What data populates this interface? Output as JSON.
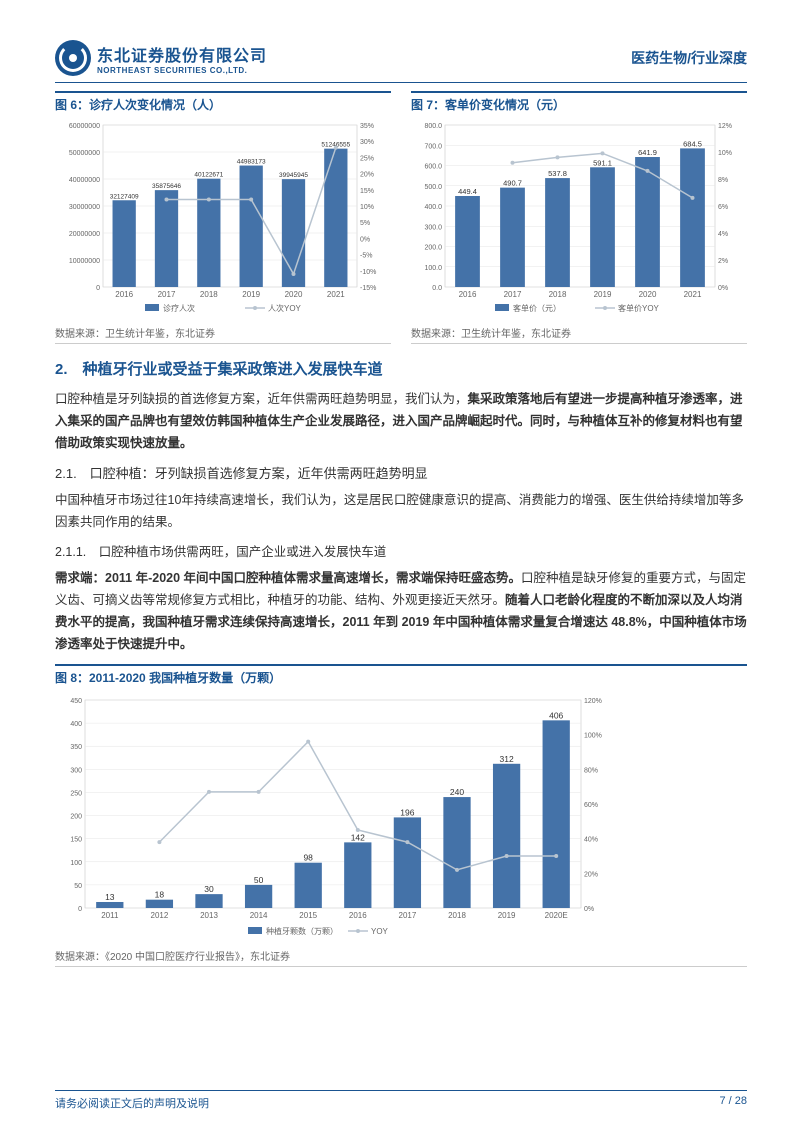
{
  "header": {
    "company_cn": "东北证券股份有限公司",
    "company_en": "NORTHEAST SECURITIES CO.,LTD.",
    "right": "医药生物/行业深度"
  },
  "chart6": {
    "title": "图 6：诊疗人次变化情况（人）",
    "type": "bar+line",
    "years": [
      "2016",
      "2017",
      "2018",
      "2019",
      "2020",
      "2021"
    ],
    "bar_values": [
      32127409,
      35875646,
      40122671,
      44983173,
      39945945,
      51246555
    ],
    "bar_labels": [
      "32127409",
      "35875646",
      "40122671",
      "44983173",
      "39945945",
      "51246555"
    ],
    "line_values_pct": [
      null,
      12,
      12,
      12,
      -11,
      28
    ],
    "y1_max": 60000000,
    "y1_step": 10000000,
    "y1_ticks": [
      "0",
      "10000000",
      "20000000",
      "30000000",
      "40000000",
      "50000000",
      "60000000"
    ],
    "y2_min": -15,
    "y2_max": 35,
    "y2_step": 5,
    "y2_ticks": [
      "-15%",
      "-10%",
      "-5%",
      "0%",
      "5%",
      "10%",
      "15%",
      "20%",
      "25%",
      "30%",
      "35%"
    ],
    "bar_color": "#4472a8",
    "line_color": "#b8c4d0",
    "legend_bar": "诊疗人次",
    "legend_line": "人次YOY",
    "source": "数据来源：卫生统计年鉴，东北证券"
  },
  "chart7": {
    "title": "图 7：客单价变化情况（元）",
    "type": "bar+line",
    "years": [
      "2016",
      "2017",
      "2018",
      "2019",
      "2020",
      "2021"
    ],
    "bar_values": [
      449.4,
      490.7,
      537.8,
      591.1,
      641.9,
      684.5
    ],
    "bar_labels": [
      "449.4",
      "490.7",
      "537.8",
      "591.1",
      "641.9",
      "684.5"
    ],
    "line_values_pct": [
      null,
      9.2,
      9.6,
      9.9,
      8.6,
      6.6
    ],
    "y1_max": 800,
    "y1_step": 100,
    "y1_ticks": [
      "0.0",
      "100.0",
      "200.0",
      "300.0",
      "400.0",
      "500.0",
      "600.0",
      "700.0",
      "800.0"
    ],
    "y2_min": 0,
    "y2_max": 12,
    "y2_step": 2,
    "y2_ticks": [
      "0%",
      "2%",
      "4%",
      "6%",
      "8%",
      "10%",
      "12%"
    ],
    "bar_color": "#4472a8",
    "line_color": "#b8c4d0",
    "legend_bar": "客单价（元）",
    "legend_line": "客单价YOY",
    "source": "数据来源：卫生统计年鉴，东北证券"
  },
  "section2_title": "2.　种植牙行业或受益于集采政策进入发展快车道",
  "p1_pre": "口腔种植是牙列缺损的首选修复方案，近年供需两旺趋势明显，我们认为，",
  "p1_bold": "集采政策落地后有望进一步提高种植牙渗透率，进入集采的国产品牌也有望效仿韩国种植体生产企业发展路径，进入国产品牌崛起时代。同时，与种植体互补的修复材料也有望借助政策实现快速放量。",
  "h21": "2.1.　口腔种植：牙列缺损首选修复方案，近年供需两旺趋势明显",
  "p2": "中国种植牙市场过往10年持续高速增长，我们认为，这是居民口腔健康意识的提高、消费能力的增强、医生供给持续增加等多因素共同作用的结果。",
  "h211": "2.1.1.　口腔种植市场供需两旺，国产企业或进入发展快车道",
  "p3_bold1": "需求端：2011 年-2020 年间中国口腔种植体需求量高速增长，需求端保持旺盛态势。",
  "p3_mid": "口腔种植是缺牙修复的重要方式，与固定义齿、可摘义齿等常规修复方式相比，种植牙的功能、结构、外观更接近天然牙。",
  "p3_bold2": "随着人口老龄化程度的不断加深以及人均消费水平的提高，我国种植牙需求连续保持高速增长，2011 年到 2019 年中国种植体需求量复合增速达 48.8%，中国种植体市场渗透率处于快速提升中。",
  "chart8": {
    "title": "图 8：2011-2020 我国种植牙数量（万颗）",
    "type": "bar+line",
    "years": [
      "2011",
      "2012",
      "2013",
      "2014",
      "2015",
      "2016",
      "2017",
      "2018",
      "2019",
      "2020E"
    ],
    "bar_values": [
      13,
      18,
      30,
      50,
      98,
      142,
      196,
      240,
      312,
      406
    ],
    "bar_labels": [
      "13",
      "18",
      "30",
      "50",
      "98",
      "142",
      "196",
      "240",
      "312",
      "406"
    ],
    "line_values_pct": [
      null,
      38,
      67,
      67,
      96,
      45,
      38,
      22,
      30,
      30
    ],
    "y1_max": 450,
    "y1_step": 50,
    "y1_ticks": [
      "0",
      "50",
      "100",
      "150",
      "200",
      "250",
      "300",
      "350",
      "400",
      "450"
    ],
    "y2_min": 0,
    "y2_max": 120,
    "y2_step": 20,
    "y2_ticks": [
      "0%",
      "20%",
      "40%",
      "60%",
      "80%",
      "100%",
      "120%"
    ],
    "bar_color": "#4472a8",
    "line_color": "#b8c4d0",
    "legend_bar": "种植牙颗数（万颗）",
    "legend_line": "YOY",
    "source": "数据来源：《2020 中国口腔医疗行业报告》，东北证券"
  },
  "footer": {
    "left": "请务必阅读正文后的声明及说明",
    "right": "7 / 28"
  }
}
